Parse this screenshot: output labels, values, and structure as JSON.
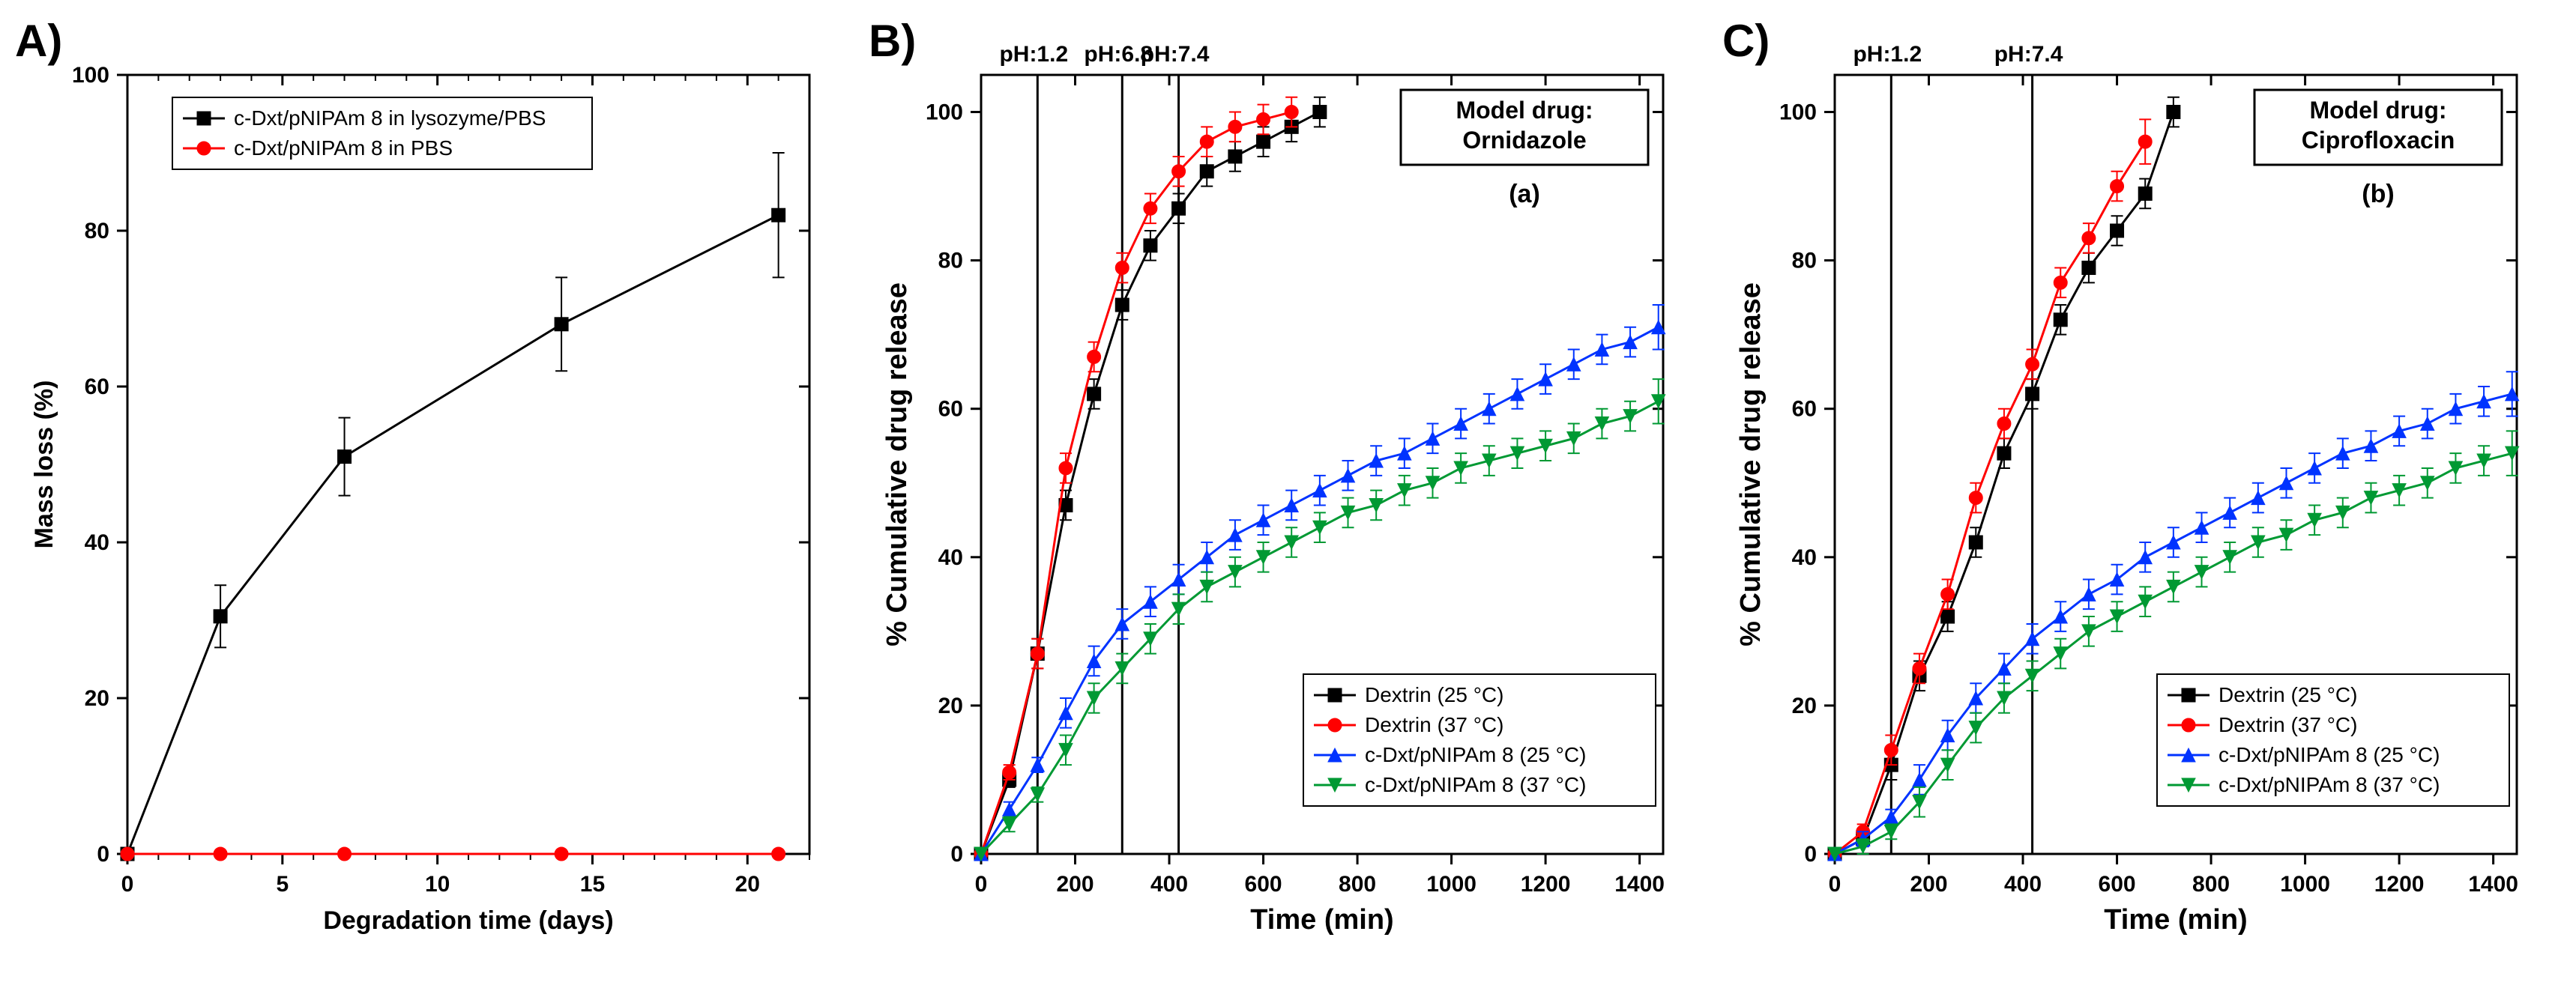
{
  "panelA": {
    "label": "A)",
    "type": "line-scatter",
    "title": "",
    "xlabel": "Degradation time (days)",
    "ylabel": "Mass loss (%)",
    "label_fontsize": 34,
    "tick_fontsize": 30,
    "legend_fontsize": 28,
    "xlim": [
      0,
      22
    ],
    "xtick_step": 5,
    "ylim": [
      0,
      100
    ],
    "ytick_step": 20,
    "background_color": "#ffffff",
    "axis_color": "#000000",
    "series": [
      {
        "name": "c-Dxt/pNIPAm 8 in lysozyme/PBS",
        "color": "#000000",
        "marker": "square",
        "x": [
          0,
          3,
          7,
          14,
          21
        ],
        "y": [
          0,
          30.5,
          51,
          68,
          82
        ],
        "err": [
          0,
          4,
          5,
          6,
          8
        ]
      },
      {
        "name": "c-Dxt/pNIPAm 8 in PBS",
        "color": "#ff0000",
        "marker": "circle",
        "x": [
          0,
          3,
          7,
          14,
          21
        ],
        "y": [
          0,
          0,
          0,
          0,
          0
        ],
        "err": [
          0,
          0,
          0,
          0,
          0
        ]
      }
    ]
  },
  "panelB": {
    "label": "B)",
    "type": "line-scatter",
    "drug_label": "Model drug:\nOrnidazole",
    "sub_label": "(a)",
    "xlabel": "Time (min)",
    "ylabel": "% Cumulative drug release",
    "label_fontsize": 38,
    "tick_fontsize": 30,
    "legend_fontsize": 28,
    "xlim": [
      0,
      1450
    ],
    "xtick_step": 200,
    "ylim": [
      0,
      105
    ],
    "ytick_step": 20,
    "background_color": "#ffffff",
    "axis_color": "#000000",
    "ph_markers": [
      {
        "x": 120,
        "label": "pH:1.2"
      },
      {
        "x": 300,
        "label": "pH:6.8"
      },
      {
        "x": 420,
        "label": "pH:7.4"
      }
    ],
    "series": [
      {
        "name": "Dextrin (25 °C)",
        "color": "#000000",
        "marker": "square",
        "x": [
          0,
          60,
          120,
          180,
          240,
          300,
          360,
          420,
          480,
          540,
          600,
          660,
          720
        ],
        "y": [
          0,
          10,
          27,
          47,
          62,
          74,
          82,
          87,
          92,
          94,
          96,
          98,
          100
        ],
        "err": [
          0,
          1,
          2,
          2,
          2,
          2,
          2,
          2,
          2,
          2,
          2,
          2,
          2
        ]
      },
      {
        "name": "Dextrin (37 °C)",
        "color": "#ff0000",
        "marker": "circle",
        "x": [
          0,
          60,
          120,
          180,
          240,
          300,
          360,
          420,
          480,
          540,
          600,
          660
        ],
        "y": [
          0,
          11,
          27,
          52,
          67,
          79,
          87,
          92,
          96,
          98,
          99,
          100
        ],
        "err": [
          0,
          1,
          2,
          2,
          2,
          2,
          2,
          2,
          2,
          2,
          2,
          2
        ]
      },
      {
        "name": "c-Dxt/pNIPAm 8 (25 °C)",
        "color": "#0033ff",
        "marker": "triangle",
        "x": [
          0,
          60,
          120,
          180,
          240,
          300,
          360,
          420,
          480,
          540,
          600,
          660,
          720,
          780,
          840,
          900,
          960,
          1020,
          1080,
          1140,
          1200,
          1260,
          1320,
          1380,
          1440
        ],
        "y": [
          0,
          6,
          12,
          19,
          26,
          31,
          34,
          37,
          40,
          43,
          45,
          47,
          49,
          51,
          53,
          54,
          56,
          58,
          60,
          62,
          64,
          66,
          68,
          69,
          71
        ],
        "err": [
          0,
          1,
          1,
          2,
          2,
          2,
          2,
          2,
          2,
          2,
          2,
          2,
          2,
          2,
          2,
          2,
          2,
          2,
          2,
          2,
          2,
          2,
          2,
          2,
          3
        ]
      },
      {
        "name": "c-Dxt/pNIPAm 8 (37 °C)",
        "color": "#009933",
        "marker": "triangle-down",
        "x": [
          0,
          60,
          120,
          180,
          240,
          300,
          360,
          420,
          480,
          540,
          600,
          660,
          720,
          780,
          840,
          900,
          960,
          1020,
          1080,
          1140,
          1200,
          1260,
          1320,
          1380,
          1440
        ],
        "y": [
          0,
          4,
          8,
          14,
          21,
          25,
          29,
          33,
          36,
          38,
          40,
          42,
          44,
          46,
          47,
          49,
          50,
          52,
          53,
          54,
          55,
          56,
          58,
          59,
          61
        ],
        "err": [
          0,
          1,
          1,
          2,
          2,
          2,
          2,
          2,
          2,
          2,
          2,
          2,
          2,
          2,
          2,
          2,
          2,
          2,
          2,
          2,
          2,
          2,
          2,
          2,
          3
        ]
      }
    ]
  },
  "panelC": {
    "label": "C)",
    "type": "line-scatter",
    "drug_label": "Model drug:\nCiprofloxacin",
    "sub_label": "(b)",
    "xlabel": "Time (min)",
    "ylabel": "% Cumulative drug release",
    "label_fontsize": 38,
    "tick_fontsize": 30,
    "legend_fontsize": 28,
    "xlim": [
      0,
      1450
    ],
    "xtick_step": 200,
    "ylim": [
      0,
      105
    ],
    "ytick_step": 20,
    "background_color": "#ffffff",
    "axis_color": "#000000",
    "ph_markers": [
      {
        "x": 120,
        "label": "pH:1.2"
      },
      {
        "x": 420,
        "label": "pH:7.4"
      }
    ],
    "series": [
      {
        "name": "Dextrin (25 °C)",
        "color": "#000000",
        "marker": "square",
        "x": [
          0,
          60,
          120,
          180,
          240,
          300,
          360,
          420,
          480,
          540,
          600,
          660,
          720
        ],
        "y": [
          0,
          2,
          12,
          24,
          32,
          42,
          54,
          62,
          72,
          79,
          84,
          89,
          100
        ],
        "err": [
          0,
          1,
          2,
          2,
          2,
          2,
          2,
          2,
          2,
          2,
          2,
          2,
          2
        ]
      },
      {
        "name": "Dextrin (37 °C)",
        "color": "#ff0000",
        "marker": "circle",
        "x": [
          0,
          60,
          120,
          180,
          240,
          300,
          360,
          420,
          480,
          540,
          600,
          660
        ],
        "y": [
          0,
          3,
          14,
          25,
          35,
          48,
          58,
          66,
          77,
          83,
          90,
          96
        ],
        "err": [
          0,
          1,
          2,
          2,
          2,
          2,
          2,
          2,
          2,
          2,
          2,
          3
        ]
      },
      {
        "name": "c-Dxt/pNIPAm 8 (25 °C)",
        "color": "#0033ff",
        "marker": "triangle",
        "x": [
          0,
          60,
          120,
          180,
          240,
          300,
          360,
          420,
          480,
          540,
          600,
          660,
          720,
          780,
          840,
          900,
          960,
          1020,
          1080,
          1140,
          1200,
          1260,
          1320,
          1380,
          1440
        ],
        "y": [
          0,
          2,
          5,
          10,
          16,
          21,
          25,
          29,
          32,
          35,
          37,
          40,
          42,
          44,
          46,
          48,
          50,
          52,
          54,
          55,
          57,
          58,
          60,
          61,
          62
        ],
        "err": [
          0,
          1,
          1,
          2,
          2,
          2,
          2,
          2,
          2,
          2,
          2,
          2,
          2,
          2,
          2,
          2,
          2,
          2,
          2,
          2,
          2,
          2,
          2,
          2,
          3
        ]
      },
      {
        "name": "c-Dxt/pNIPAm 8 (37 °C)",
        "color": "#009933",
        "marker": "triangle-down",
        "x": [
          0,
          60,
          120,
          180,
          240,
          300,
          360,
          420,
          480,
          540,
          600,
          660,
          720,
          780,
          840,
          900,
          960,
          1020,
          1080,
          1140,
          1200,
          1260,
          1320,
          1380,
          1440
        ],
        "y": [
          0,
          1,
          3,
          7,
          12,
          17,
          21,
          24,
          27,
          30,
          32,
          34,
          36,
          38,
          40,
          42,
          43,
          45,
          46,
          48,
          49,
          50,
          52,
          53,
          54
        ],
        "err": [
          0,
          1,
          1,
          2,
          2,
          2,
          2,
          2,
          2,
          2,
          2,
          2,
          2,
          2,
          2,
          2,
          2,
          2,
          2,
          2,
          2,
          2,
          2,
          2,
          3
        ]
      }
    ]
  }
}
